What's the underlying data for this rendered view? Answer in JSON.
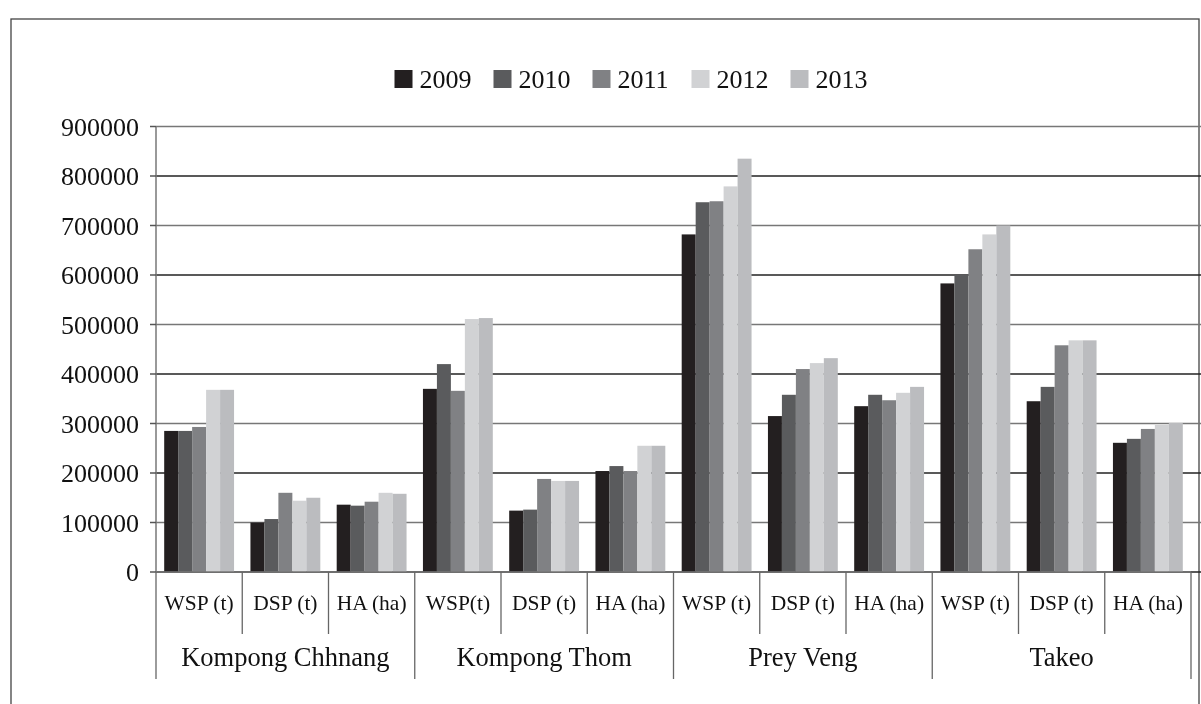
{
  "chart_data": {
    "type": "bar",
    "categories": [
      "WSP (t)",
      "DSP (t)",
      "HA (ha)",
      "WSP(t)",
      "DSP (t)",
      "HA (ha)",
      "WSP (t)",
      "DSP (t)",
      "HA (ha)",
      "WSP (t)",
      "DSP (t)",
      "HA (ha)"
    ],
    "series": [
      {
        "name": "2009",
        "color": "#231f20",
        "values": [
          285000,
          100000,
          136000,
          370000,
          124000,
          204000,
          682000,
          315000,
          335000,
          583000,
          345000,
          261000
        ]
      },
      {
        "name": "2010",
        "color": "#5a5b5d",
        "values": [
          285000,
          107000,
          134000,
          420000,
          126000,
          214000,
          747000,
          358000,
          358000,
          601000,
          374000,
          269000
        ]
      },
      {
        "name": "2011",
        "color": "#808184",
        "values": [
          293000,
          160000,
          142000,
          366000,
          188000,
          204000,
          749000,
          410000,
          347000,
          652000,
          458000,
          289000
        ]
      },
      {
        "name": "2012",
        "color": "#d1d2d4",
        "values": [
          368000,
          144000,
          160000,
          511000,
          184000,
          255000,
          779000,
          422000,
          362000,
          682000,
          468000,
          297000
        ]
      },
      {
        "name": "2013",
        "color": "#bbbcbf",
        "values": [
          368000,
          150000,
          158000,
          513000,
          184000,
          255000,
          835000,
          432000,
          374000,
          700000,
          468000,
          301000
        ]
      }
    ],
    "ylim": [
      0,
      900000
    ],
    "yticks": [
      0,
      100000,
      200000,
      300000,
      400000,
      500000,
      600000,
      700000,
      800000,
      900000
    ],
    "grid": "y",
    "legend": "top",
    "annotations": [
      "Kompong Chhnang",
      "Kompong Thom",
      "Prey Veng",
      "Takeo"
    ]
  }
}
